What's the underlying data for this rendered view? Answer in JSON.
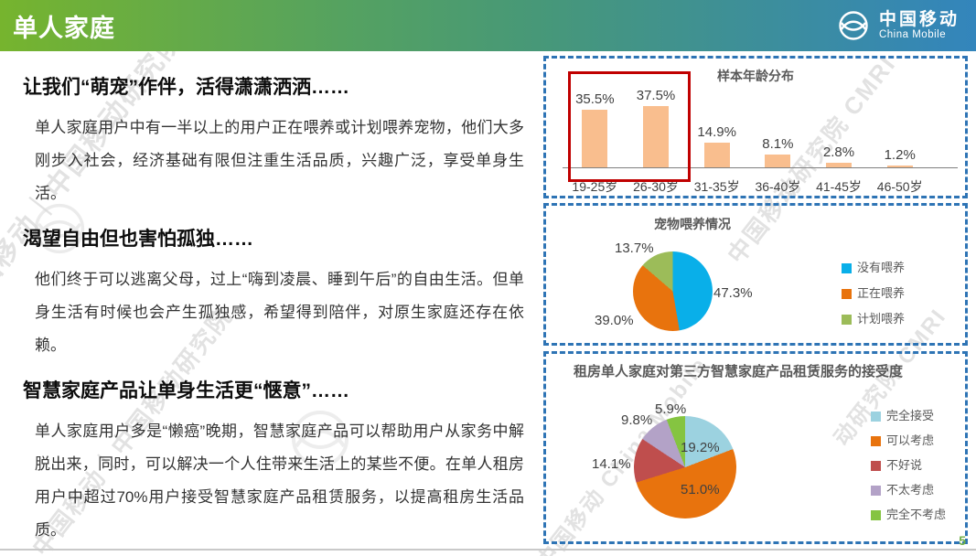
{
  "header": {
    "title": "单人家庭",
    "logo_cn": "中国移动",
    "logo_en": "China Mobile"
  },
  "sections": [
    {
      "heading": "让我们“萌宠”作伴，活得潇潇洒洒……",
      "body": "单人家庭用户中有一半以上的用户正在喂养或计划喂养宠物，他们大多刚步入社会，经济基础有限但注重生活品质，兴趣广泛，享受单身生活。"
    },
    {
      "heading": "渴望自由但也害怕孤独……",
      "body": "他们终于可以逃离父母，过上“嗨到凌晨、睡到午后”的自由生活。但单身生活有时候也会产生孤独感，希望得到陪伴，对原生家庭还存在依赖。"
    },
    {
      "heading": "智慧家庭产品让单身生活更“惬意”……",
      "body": "单人家庭用户多是“懒癌”晚期，智慧家庭产品可以帮助用户从家务中解脱出来，同时，可以解决一个人住带来生活上的某些不便。在单人租房用户中超过70%用户接受智慧家庭产品租赁服务，以提高租房生活品质。"
    }
  ],
  "chart_data": [
    {
      "type": "bar",
      "title": "样本年龄分布",
      "categories": [
        "19-25岁",
        "26-30岁",
        "31-35岁",
        "36-40岁",
        "41-45岁",
        "46-50岁"
      ],
      "values": [
        35.5,
        37.5,
        14.9,
        8.1,
        2.8,
        1.2
      ],
      "unit": "%",
      "bar_color": "#f9be8e",
      "ylim": [
        0,
        40
      ],
      "highlight": {
        "categories": [
          "19-25岁",
          "26-30岁"
        ],
        "color": "#c00000"
      }
    },
    {
      "type": "pie",
      "title": "宠物喂养情况",
      "legend_position": "right",
      "slices": [
        {
          "label": "没有喂养",
          "value": 47.3,
          "color": "#09afe9"
        },
        {
          "label": "正在喂养",
          "value": 39.0,
          "color": "#e8730d"
        },
        {
          "label": "计划喂养",
          "value": 13.7,
          "color": "#9cbc59"
        }
      ]
    },
    {
      "type": "pie",
      "title": "租房单人家庭对第三方智慧家庭产品租赁服务的接受度",
      "legend_position": "right",
      "slices": [
        {
          "label": "完全接受",
          "value": 19.2,
          "color": "#9cd2e0"
        },
        {
          "label": "可以考虑",
          "value": 51.0,
          "color": "#e8730d"
        },
        {
          "label": "不好说",
          "value": 14.1,
          "color": "#bf4e4d"
        },
        {
          "label": "不太考虑",
          "value": 9.8,
          "color": "#b3a2c7"
        },
        {
          "label": "完全不考虑",
          "value": 5.9,
          "color": "#85c441"
        }
      ]
    }
  ],
  "watermark": {
    "stamps": [
      "中国移动｜中国移动研究院",
      "中国移动研究院 CMRI",
      "中国移动 China Mobile",
      "中国移动｜中国移动研究院",
      "动研究院 CMRI"
    ]
  },
  "footer": {
    "page_number": "5"
  }
}
